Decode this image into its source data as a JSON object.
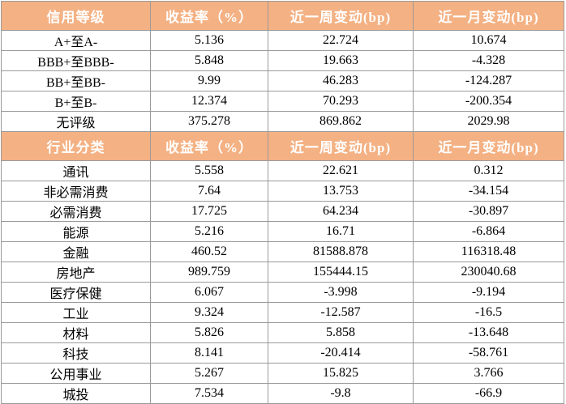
{
  "credit_table": {
    "headers": [
      "信用等级",
      "收益率（%）",
      "近一周变动(bp)",
      "近一月变动(bp)"
    ],
    "rows": [
      [
        "A+至A-",
        "5.136",
        "22.724",
        "10.674"
      ],
      [
        "BBB+至BBB-",
        "5.848",
        "19.663",
        "-4.328"
      ],
      [
        "BB+至BB-",
        "9.99",
        "46.283",
        "-124.287"
      ],
      [
        "B+至B-",
        "12.374",
        "70.293",
        "-200.354"
      ],
      [
        "无评级",
        "375.278",
        "869.862",
        "2029.98"
      ]
    ]
  },
  "industry_table": {
    "headers": [
      "行业分类",
      "收益率（%）",
      "近一周变动(bp)",
      "近一月变动(bp)"
    ],
    "rows": [
      [
        "通讯",
        "5.558",
        "22.621",
        "0.312"
      ],
      [
        "非必需消费",
        "7.64",
        "13.753",
        "-34.154"
      ],
      [
        "必需消费",
        "17.725",
        "64.234",
        "-30.897"
      ],
      [
        "能源",
        "5.216",
        "16.71",
        "-6.864"
      ],
      [
        "金融",
        "460.52",
        "81588.878",
        "116318.48"
      ],
      [
        "房地产",
        "989.759",
        "155444.15",
        "230040.68"
      ],
      [
        "医疗保健",
        "6.067",
        "-3.998",
        "-9.194"
      ],
      [
        "工业",
        "9.324",
        "-12.587",
        "-16.5"
      ],
      [
        "材料",
        "5.826",
        "5.858",
        "-13.648"
      ],
      [
        "科技",
        "8.141",
        "-20.414",
        "-58.761"
      ],
      [
        "公用事业",
        "5.267",
        "15.825",
        "3.766"
      ],
      [
        "城投",
        "7.534",
        "-9.8",
        "-66.9"
      ]
    ]
  },
  "colors": {
    "header_bg": "#f4b183",
    "header_text": "#ffffff",
    "border": "#9a9a9a"
  }
}
